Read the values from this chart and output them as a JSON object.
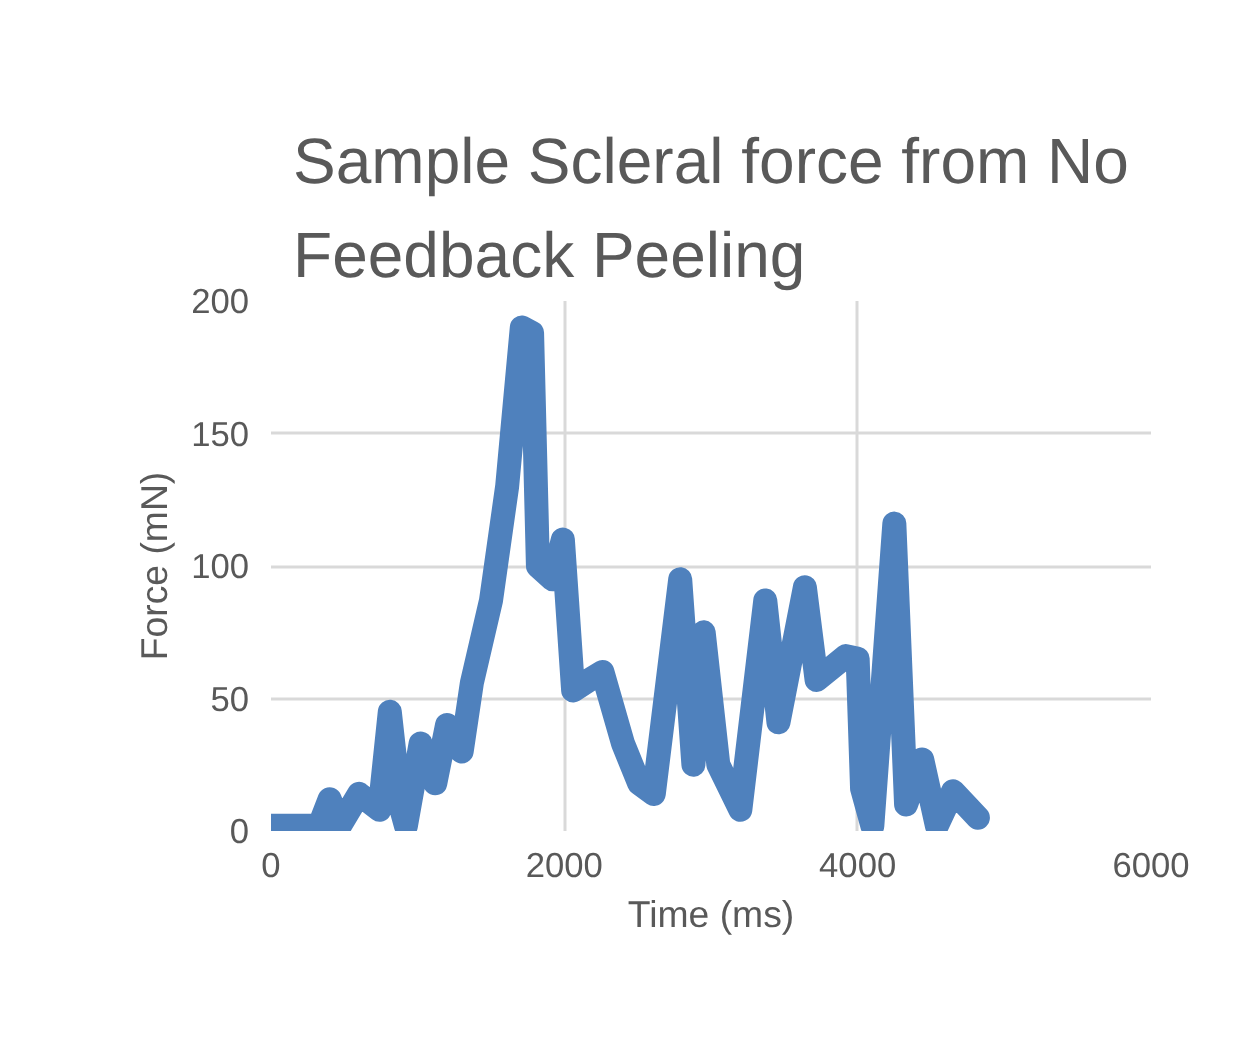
{
  "chart_data": {
    "type": "line",
    "title": "Sample Scleral force from No Feedback Peeling",
    "xlabel": "Time (ms)",
    "ylabel": "Force (mN)",
    "x": [
      0,
      330,
      400,
      470,
      600,
      740,
      810,
      880,
      920,
      1020,
      1120,
      1200,
      1300,
      1370,
      1500,
      1610,
      1710,
      1780,
      1820,
      1920,
      1990,
      2060,
      2170,
      2260,
      2400,
      2510,
      2610,
      2790,
      2880,
      2950,
      3050,
      3200,
      3370,
      3460,
      3640,
      3720,
      3920,
      4000,
      4030,
      4100,
      4250,
      4330,
      4440,
      4540,
      4650,
      4820
    ],
    "series": [
      {
        "color": "#4f81bd",
        "values": [
          2,
          2,
          12,
          2,
          14,
          8,
          45,
          10,
          2,
          33,
          18,
          40,
          30,
          56,
          87,
          130,
          190,
          188,
          100,
          95,
          110,
          53,
          57,
          60,
          33,
          18,
          14,
          95,
          25,
          75,
          25,
          8,
          87,
          41,
          92,
          57,
          66,
          65,
          16,
          2,
          116,
          10,
          27,
          2,
          15,
          5
        ]
      }
    ],
    "xlim": [
      0,
      6000
    ],
    "ylim": [
      0,
      200
    ],
    "xticks": [
      0,
      2000,
      4000,
      6000
    ],
    "yticks": [
      0,
      50,
      100,
      150,
      200
    ],
    "grid": true,
    "line_style": "solid"
  }
}
